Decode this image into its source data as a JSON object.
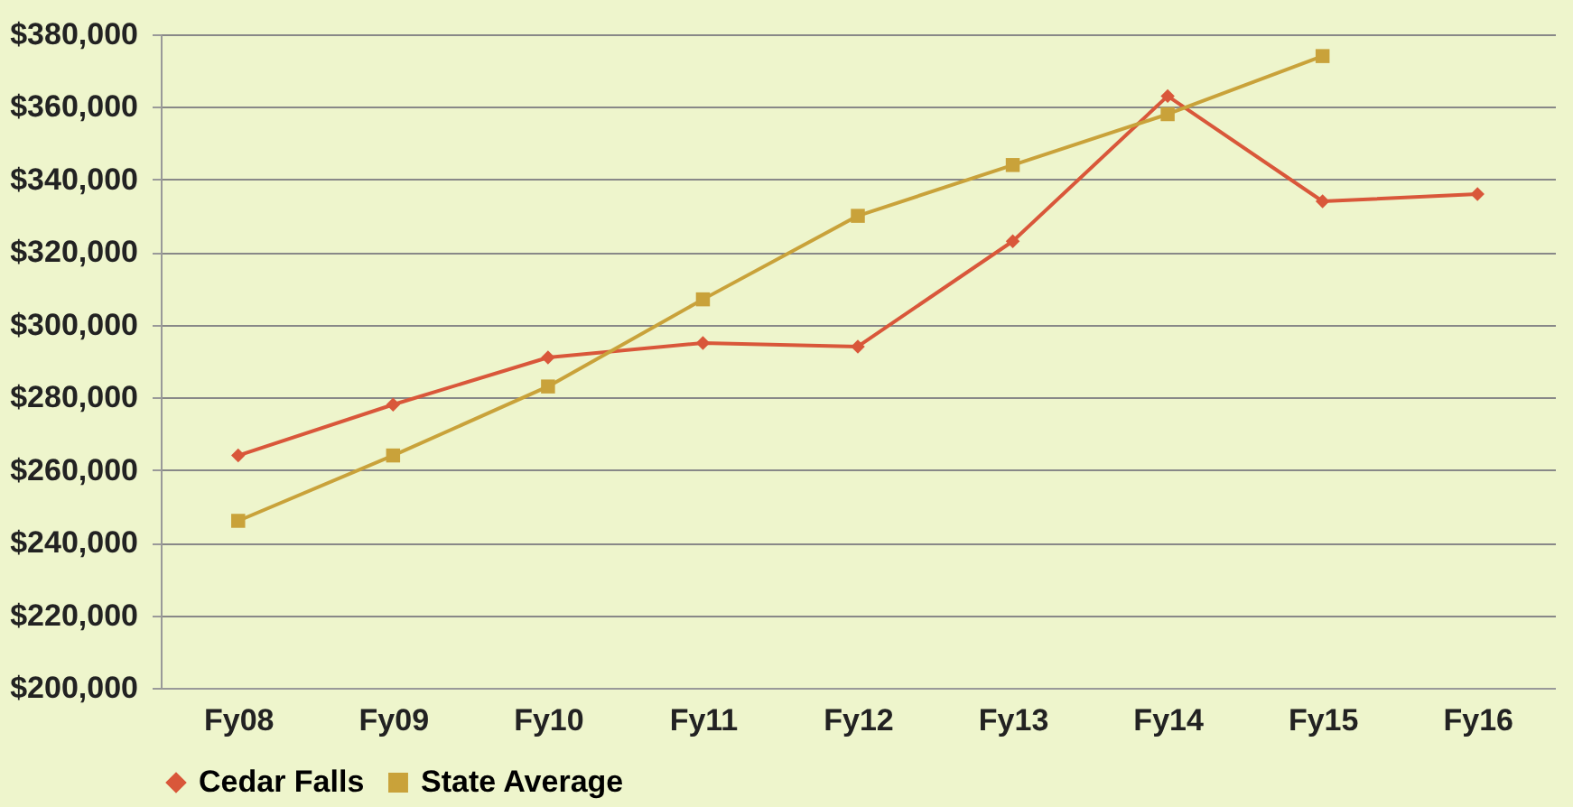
{
  "chart_data": {
    "type": "line",
    "categories": [
      "Fy08",
      "Fy09",
      "Fy10",
      "Fy11",
      "Fy12",
      "Fy13",
      "Fy14",
      "Fy15",
      "Fy16"
    ],
    "series": [
      {
        "name": "Cedar Falls",
        "color": "#d9573a",
        "marker": "diamond",
        "values": [
          264000,
          278000,
          291000,
          295000,
          294000,
          323000,
          363000,
          334000,
          336000
        ]
      },
      {
        "name": "State Average",
        "color": "#c9a23a",
        "marker": "square",
        "values": [
          246000,
          264000,
          283000,
          307000,
          330000,
          344000,
          358000,
          374000,
          null
        ]
      }
    ],
    "ylim": [
      200000,
      380000
    ],
    "yticks": [
      {
        "value": 200000,
        "label": "$200,000"
      },
      {
        "value": 220000,
        "label": "$220,000"
      },
      {
        "value": 240000,
        "label": "$240,000"
      },
      {
        "value": 260000,
        "label": "$260,000"
      },
      {
        "value": 280000,
        "label": "$280,000"
      },
      {
        "value": 300000,
        "label": "$300,000"
      },
      {
        "value": 320000,
        "label": "$320,000"
      },
      {
        "value": 340000,
        "label": "$340,000"
      },
      {
        "value": 360000,
        "label": "$360,000"
      },
      {
        "value": 380000,
        "label": "$380,000"
      }
    ],
    "grid": "y",
    "legend": "bottom",
    "line_style": "solid"
  }
}
